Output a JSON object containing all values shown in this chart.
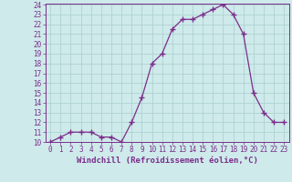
{
  "x": [
    0,
    1,
    2,
    3,
    4,
    5,
    6,
    7,
    8,
    9,
    10,
    11,
    12,
    13,
    14,
    15,
    16,
    17,
    18,
    19,
    20,
    21,
    22,
    23
  ],
  "y": [
    10,
    10.5,
    11,
    11,
    11,
    10.5,
    10.5,
    10,
    12,
    14.5,
    18,
    19,
    21.5,
    22.5,
    22.5,
    23,
    23.5,
    24,
    23,
    21,
    15,
    13,
    12,
    12
  ],
  "line_color": "#7b2d8b",
  "marker": "+",
  "marker_size": 4,
  "background_color": "#ceeaea",
  "grid_color": "#aacece",
  "xlabel": "Windchill (Refroidissement éolien,°C)",
  "xlabel_fontsize": 6.5,
  "ylim": [
    10,
    24
  ],
  "xlim": [
    -0.5,
    23.5
  ],
  "yticks": [
    10,
    11,
    12,
    13,
    14,
    15,
    16,
    17,
    18,
    19,
    20,
    21,
    22,
    23,
    24
  ],
  "xticks": [
    0,
    1,
    2,
    3,
    4,
    5,
    6,
    7,
    8,
    9,
    10,
    11,
    12,
    13,
    14,
    15,
    16,
    17,
    18,
    19,
    20,
    21,
    22,
    23
  ],
  "tick_color": "#7b2d8b",
  "tick_fontsize": 5.5,
  "spine_color": "#7b2d8b",
  "line_width": 0.9,
  "marker_color": "#7b2d8b"
}
